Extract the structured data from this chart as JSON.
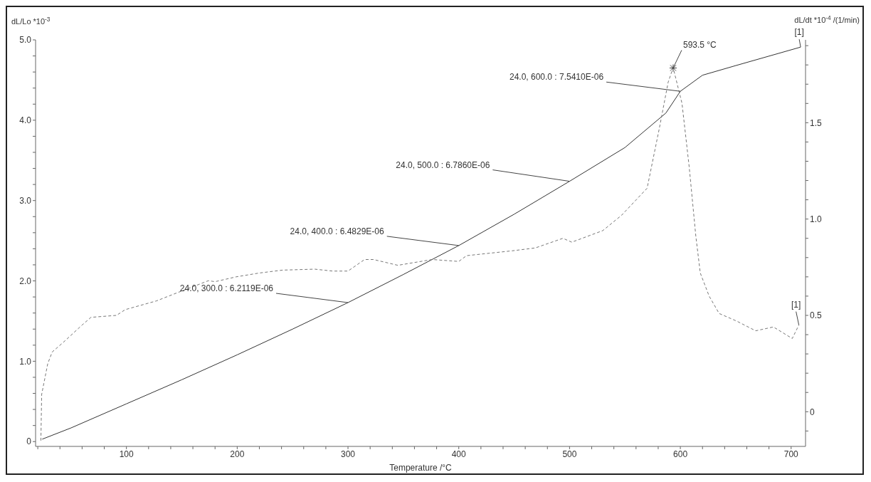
{
  "chart_data": {
    "type": "line",
    "xlabel": "Temperature /°C",
    "ylabel": "dL/Lo *10$^{-3}$",
    "y2label": "dL/dt *10$^{-4}$ /(1/min)",
    "xlim": [
      18,
      713
    ],
    "xticks": [
      {
        "value": 20,
        "label": null
      },
      {
        "value": 40,
        "label": null
      },
      {
        "value": 60,
        "label": null
      },
      {
        "value": 80,
        "label": null
      },
      100,
      {
        "value": 120,
        "label": null
      },
      {
        "value": 140,
        "label": null
      },
      {
        "value": 160,
        "label": null
      },
      {
        "value": 180,
        "label": null
      },
      200,
      {
        "value": 220,
        "label": null
      },
      {
        "value": 240,
        "label": null
      },
      {
        "value": 260,
        "label": null
      },
      {
        "value": 280,
        "label": null
      },
      300,
      {
        "value": 320,
        "label": null
      },
      {
        "value": 340,
        "label": null
      },
      {
        "value": 360,
        "label": null
      },
      {
        "value": 380,
        "label": null
      },
      400,
      {
        "value": 420,
        "label": null
      },
      {
        "value": 440,
        "label": null
      },
      {
        "value": 460,
        "label": null
      },
      {
        "value": 480,
        "label": null
      },
      500,
      {
        "value": 520,
        "label": null
      },
      {
        "value": 540,
        "label": null
      },
      {
        "value": 560,
        "label": null
      },
      {
        "value": 580,
        "label": null
      },
      600,
      {
        "value": 620,
        "label": null
      },
      {
        "value": 640,
        "label": null
      },
      {
        "value": 660,
        "label": null
      },
      {
        "value": 680,
        "label": null
      },
      700
    ],
    "ylim": [
      -0.06,
      5.0
    ],
    "yticks": [
      0,
      {
        "value": 0.2,
        "label": null
      },
      {
        "value": 0.4,
        "label": null
      },
      {
        "value": 0.6,
        "label": null
      },
      {
        "value": 0.8,
        "label": null
      },
      {
        "value": 1,
        "label": "1.0"
      },
      {
        "value": 1.2,
        "label": null
      },
      {
        "value": 1.4,
        "label": null
      },
      {
        "value": 1.6,
        "label": null
      },
      {
        "value": 1.8,
        "label": null
      },
      {
        "value": 2,
        "label": "2.0"
      },
      {
        "value": 2.2,
        "label": null
      },
      {
        "value": 2.4,
        "label": null
      },
      {
        "value": 2.6,
        "label": null
      },
      {
        "value": 2.8,
        "label": null
      },
      {
        "value": 3,
        "label": "3.0"
      },
      {
        "value": 3.2,
        "label": null
      },
      {
        "value": 3.4,
        "label": null
      },
      {
        "value": 3.6,
        "label": null
      },
      {
        "value": 3.8,
        "label": null
      },
      {
        "value": 4,
        "label": "4.0"
      },
      {
        "value": 4.2,
        "label": null
      },
      {
        "value": 4.4,
        "label": null
      },
      {
        "value": 4.6,
        "label": null
      },
      {
        "value": 4.8,
        "label": null
      },
      {
        "value": 5,
        "label": "5.0"
      }
    ],
    "y2lim": [
      -0.18,
      1.93
    ],
    "y2ticks": [
      {
        "value": -0.1,
        "label": null
      },
      0,
      {
        "value": 0.1,
        "label": null
      },
      {
        "value": 0.2,
        "label": null
      },
      {
        "value": 0.3,
        "label": null
      },
      {
        "value": 0.4,
        "label": null
      },
      0.5,
      {
        "value": 0.6,
        "label": null
      },
      {
        "value": 0.7,
        "label": null
      },
      {
        "value": 0.8,
        "label": null
      },
      {
        "value": 0.9,
        "label": null
      },
      {
        "value": 1,
        "label": "1.0"
      },
      {
        "value": 1.1,
        "label": null
      },
      {
        "value": 1.2,
        "label": null
      },
      {
        "value": 1.3,
        "label": null
      },
      {
        "value": 1.4,
        "label": null
      },
      1.5,
      {
        "value": 1.6,
        "label": null
      },
      {
        "value": 1.7,
        "label": null
      },
      {
        "value": 1.8,
        "label": null
      },
      {
        "value": 1.9,
        "label": null
      }
    ],
    "marker": "none",
    "series": [
      {
        "color": "#333333",
        "line_style": "solid",
        "x": [
          24,
          50,
          100,
          150,
          200,
          250,
          300,
          350,
          400,
          450,
          500,
          550,
          587,
          600,
          620,
          650,
          708.6
        ],
        "values": [
          0.03,
          0.17,
          0.47,
          0.77,
          1.08,
          1.4,
          1.73,
          2.08,
          2.44,
          2.83,
          3.24,
          3.66,
          4.09,
          4.36,
          4.56,
          4.68,
          4.91
        ]
      },
      {
        "color": "#777777",
        "line_style": "dashed",
        "axis": "y2",
        "x": [
          22.8,
          23.5,
          29,
          33,
          43,
          60,
          68,
          91,
          99,
          127,
          147,
          174,
          180,
          199,
          220,
          241,
          270,
          286,
          300,
          315,
          323,
          345,
          376,
          400,
          407,
          448,
          469,
          494,
          502,
          530,
          547,
          570,
          581,
          589,
          593.5,
          601.5,
          608,
          614,
          618,
          626,
          635,
          651,
          668,
          684,
          701,
          707
        ],
        "values": [
          -0.15,
          0.09,
          0.25,
          0.31,
          0.36,
          0.45,
          0.49,
          0.5,
          0.53,
          0.575,
          0.62,
          0.68,
          0.675,
          0.7,
          0.72,
          0.735,
          0.74,
          0.73,
          0.73,
          0.79,
          0.79,
          0.76,
          0.79,
          0.78,
          0.81,
          0.835,
          0.85,
          0.9,
          0.88,
          0.94,
          1.02,
          1.16,
          1.47,
          1.71,
          1.786,
          1.6,
          1.27,
          0.91,
          0.72,
          0.6,
          0.51,
          0.47,
          0.42,
          0.44,
          0.38,
          0.45
        ]
      }
    ],
    "annotations": [
      {
        "text": "24.0, 300.0 : 6.2119E-06",
        "x": 300,
        "y": 1.73
      },
      {
        "text": "24.0, 400.0 : 6.4829E-06",
        "x": 400,
        "y": 2.44
      },
      {
        "text": "24.0, 500.0 : 6.7860E-06",
        "x": 500,
        "y": 3.24
      },
      {
        "text": "24.0, 600.0 : 7.5410E-06",
        "x": 600,
        "y": 4.36
      },
      {
        "text": "593.5 °C",
        "x": 593.5,
        "y": 4.65
      },
      {
        "text": "[1]",
        "x": 708.6,
        "y": 4.91
      },
      {
        "text": "[1]",
        "x": 707,
        "y": 1.45
      }
    ]
  }
}
